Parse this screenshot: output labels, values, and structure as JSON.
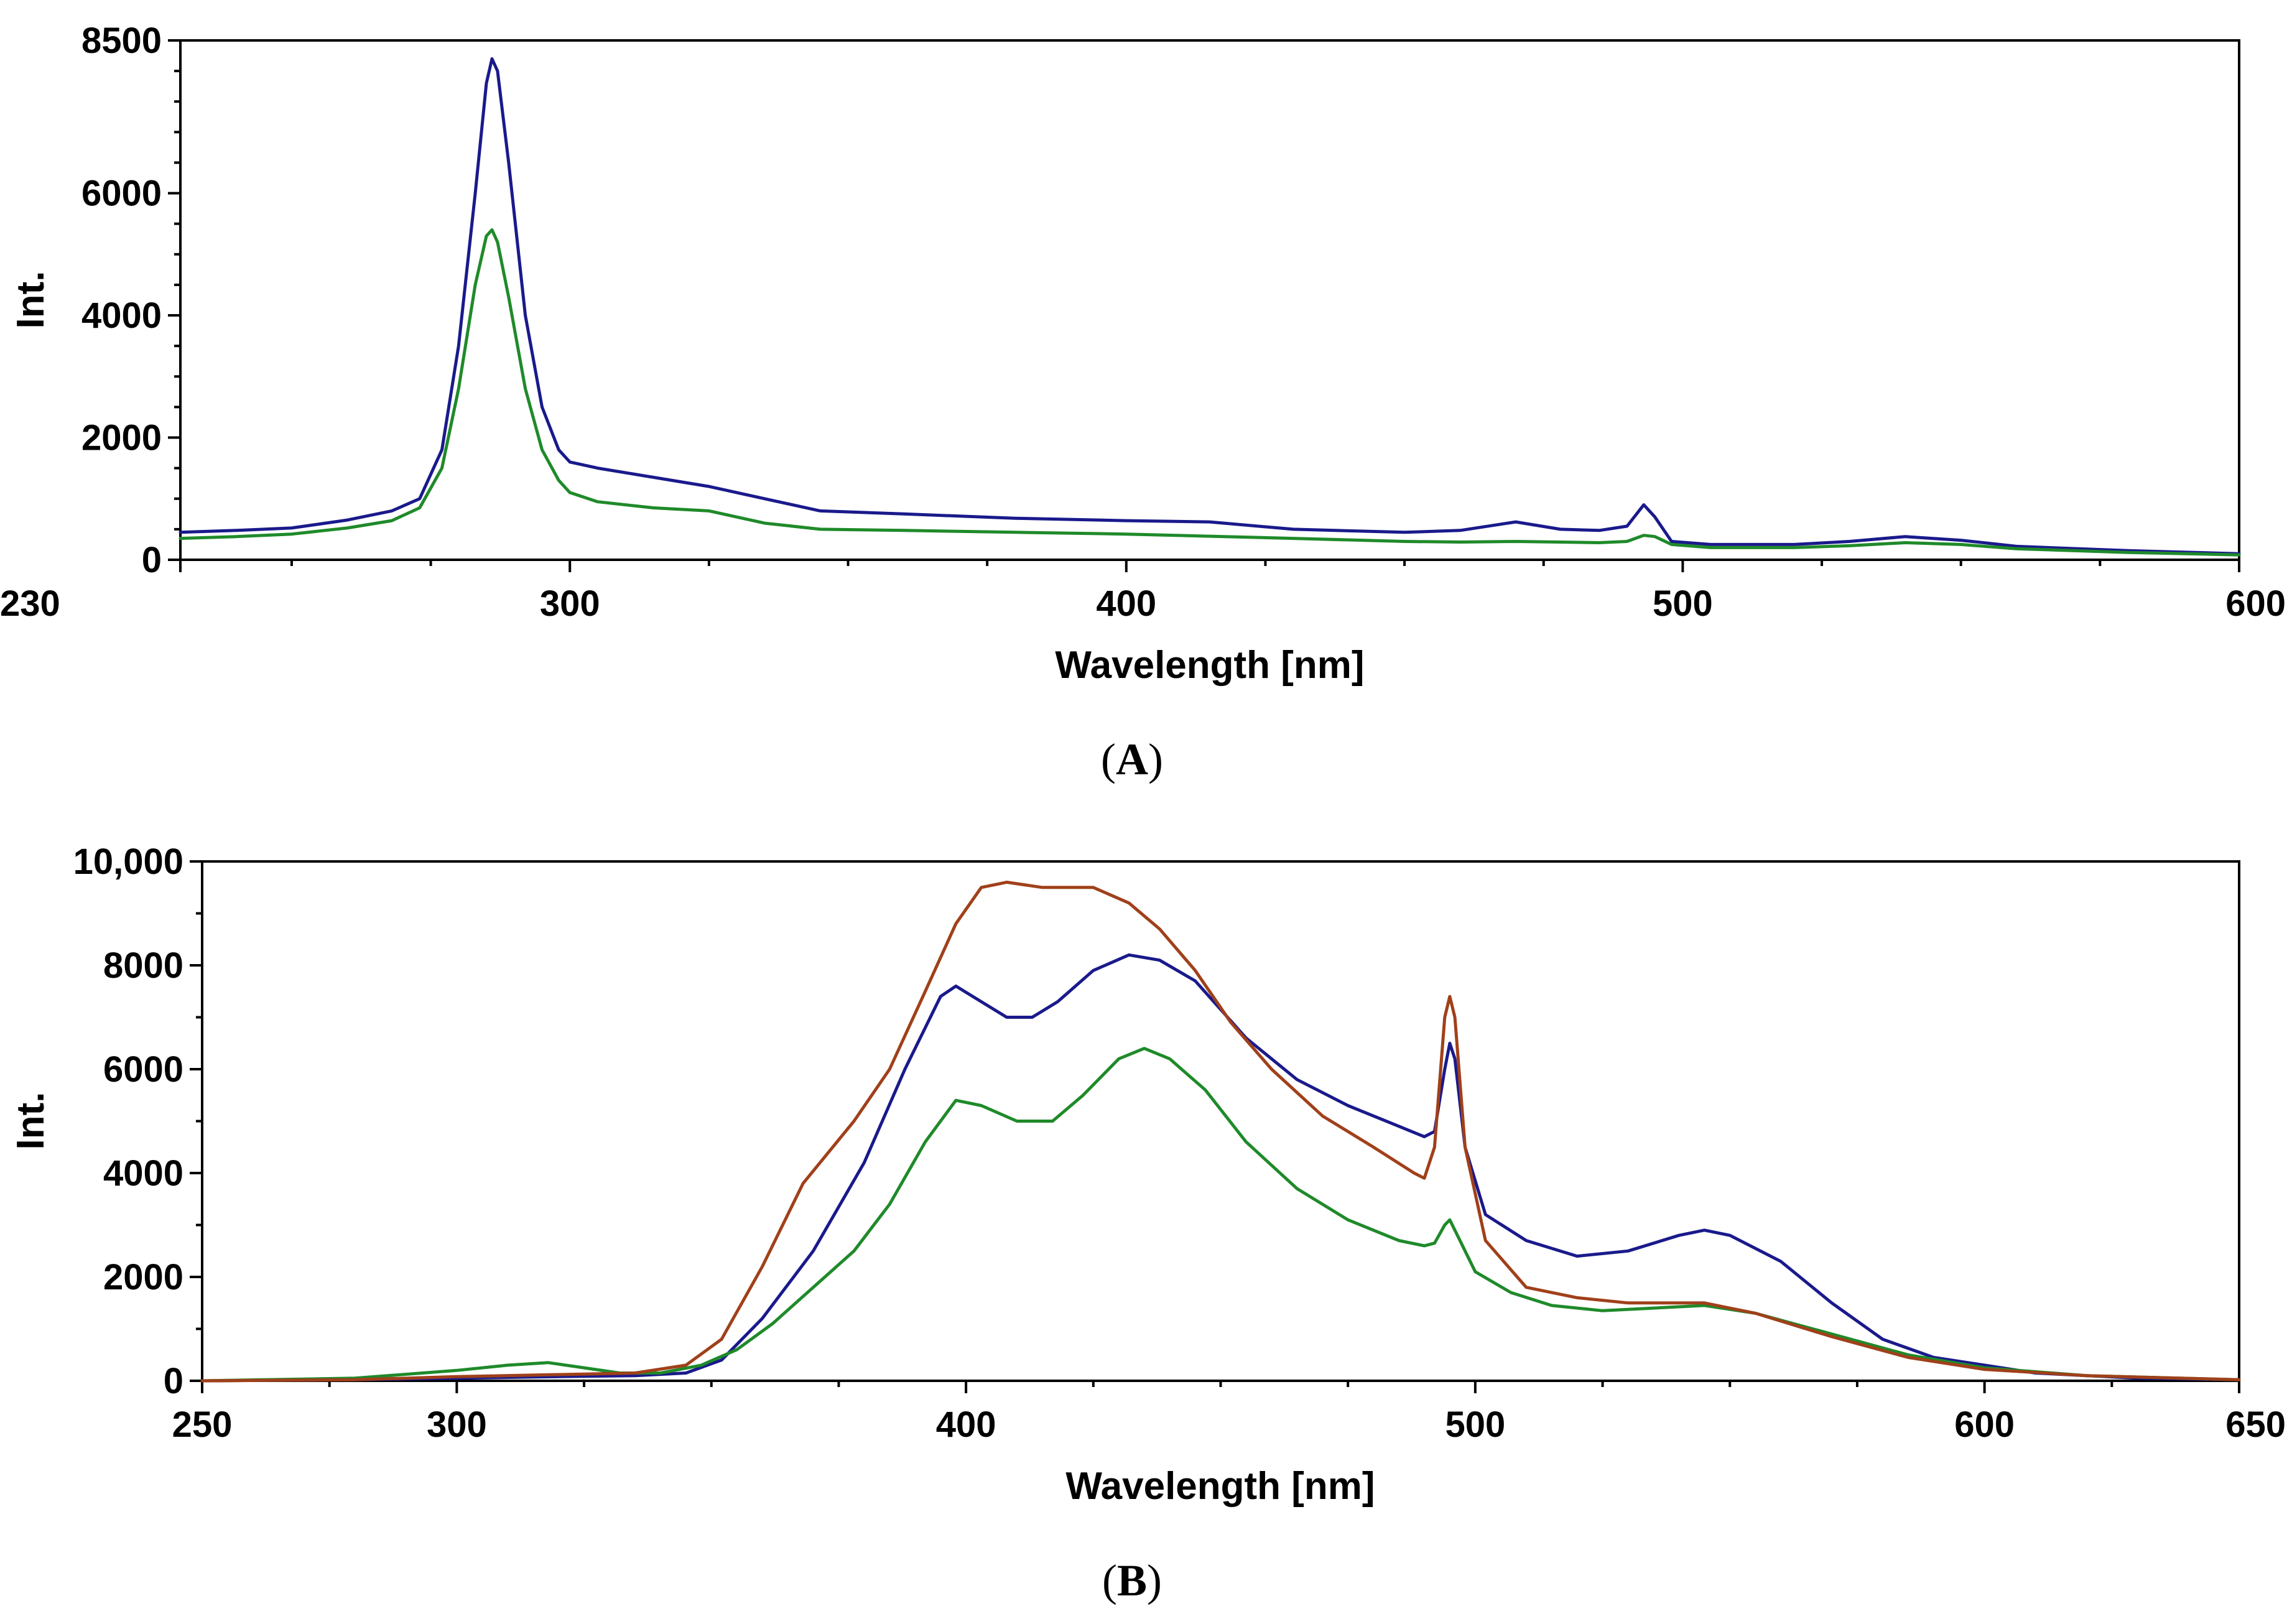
{
  "chart_data": [
    {
      "panel": "A",
      "type": "line",
      "title": "",
      "xlabel": "Wavelength [nm]",
      "ylabel": "Int.",
      "xlim": [
        230,
        600
      ],
      "ylim": [
        0,
        8500
      ],
      "xticks": [
        230,
        300,
        400,
        500,
        600
      ],
      "yticks": [
        0,
        2000,
        4000,
        6000,
        8500
      ],
      "ytick_labels": [
        "0",
        "2000",
        "4000",
        "6000",
        "8500"
      ],
      "xtick_labels": [
        "230",
        "300",
        "400",
        "500",
        "600"
      ],
      "grid": false,
      "series": [
        {
          "name": "blue",
          "color": "#1a1a8c",
          "points": [
            [
              230,
              450
            ],
            [
              240,
              480
            ],
            [
              250,
              520
            ],
            [
              260,
              650
            ],
            [
              268,
              800
            ],
            [
              273,
              1000
            ],
            [
              277,
              1800
            ],
            [
              280,
              3500
            ],
            [
              283,
              6000
            ],
            [
              285,
              7800
            ],
            [
              286,
              8200
            ],
            [
              287,
              8000
            ],
            [
              289,
              6500
            ],
            [
              292,
              4000
            ],
            [
              295,
              2500
            ],
            [
              298,
              1800
            ],
            [
              300,
              1600
            ],
            [
              305,
              1500
            ],
            [
              315,
              1350
            ],
            [
              325,
              1200
            ],
            [
              335,
              1000
            ],
            [
              345,
              800
            ],
            [
              360,
              750
            ],
            [
              380,
              680
            ],
            [
              400,
              640
            ],
            [
              415,
              620
            ],
            [
              430,
              500
            ],
            [
              450,
              450
            ],
            [
              460,
              480
            ],
            [
              470,
              620
            ],
            [
              478,
              500
            ],
            [
              485,
              480
            ],
            [
              490,
              550
            ],
            [
              493,
              900
            ],
            [
              495,
              700
            ],
            [
              498,
              300
            ],
            [
              505,
              250
            ],
            [
              520,
              250
            ],
            [
              530,
              300
            ],
            [
              540,
              380
            ],
            [
              550,
              320
            ],
            [
              560,
              220
            ],
            [
              580,
              150
            ],
            [
              600,
              100
            ]
          ]
        },
        {
          "name": "green",
          "color": "#1f8a2a",
          "points": [
            [
              230,
              350
            ],
            [
              240,
              380
            ],
            [
              250,
              420
            ],
            [
              260,
              520
            ],
            [
              268,
              640
            ],
            [
              273,
              850
            ],
            [
              277,
              1500
            ],
            [
              280,
              2800
            ],
            [
              283,
              4500
            ],
            [
              285,
              5300
            ],
            [
              286,
              5400
            ],
            [
              287,
              5200
            ],
            [
              289,
              4300
            ],
            [
              292,
              2800
            ],
            [
              295,
              1800
            ],
            [
              298,
              1300
            ],
            [
              300,
              1100
            ],
            [
              305,
              950
            ],
            [
              315,
              850
            ],
            [
              325,
              800
            ],
            [
              335,
              600
            ],
            [
              345,
              500
            ],
            [
              360,
              480
            ],
            [
              380,
              450
            ],
            [
              400,
              420
            ],
            [
              430,
              350
            ],
            [
              450,
              300
            ],
            [
              460,
              290
            ],
            [
              470,
              300
            ],
            [
              485,
              280
            ],
            [
              490,
              300
            ],
            [
              493,
              400
            ],
            [
              495,
              380
            ],
            [
              498,
              250
            ],
            [
              505,
              200
            ],
            [
              520,
              200
            ],
            [
              530,
              230
            ],
            [
              540,
              280
            ],
            [
              550,
              250
            ],
            [
              560,
              180
            ],
            [
              580,
              120
            ],
            [
              600,
              80
            ]
          ]
        }
      ]
    },
    {
      "panel": "B",
      "type": "line",
      "title": "",
      "xlabel": "Wavelength [nm]",
      "ylabel": "Int.",
      "xlim": [
        250,
        650
      ],
      "ylim": [
        0,
        10000
      ],
      "xticks": [
        250,
        300,
        400,
        500,
        600,
        650
      ],
      "yticks": [
        0,
        2000,
        4000,
        6000,
        8000,
        10000
      ],
      "ytick_labels": [
        "0",
        "2000",
        "4000",
        "6000",
        "8000",
        "10,000"
      ],
      "xtick_labels": [
        "250",
        "300",
        "400",
        "500",
        "600",
        "650"
      ],
      "grid": false,
      "series": [
        {
          "name": "blue",
          "color": "#1a1a8c",
          "points": [
            [
              250,
              0
            ],
            [
              280,
              20
            ],
            [
              300,
              50
            ],
            [
              320,
              80
            ],
            [
              335,
              100
            ],
            [
              345,
              150
            ],
            [
              352,
              400
            ],
            [
              360,
              1200
            ],
            [
              370,
              2500
            ],
            [
              380,
              4200
            ],
            [
              388,
              6000
            ],
            [
              395,
              7400
            ],
            [
              398,
              7600
            ],
            [
              403,
              7300
            ],
            [
              408,
              7000
            ],
            [
              413,
              7000
            ],
            [
              418,
              7300
            ],
            [
              425,
              7900
            ],
            [
              432,
              8200
            ],
            [
              438,
              8100
            ],
            [
              445,
              7700
            ],
            [
              455,
              6600
            ],
            [
              465,
              5800
            ],
            [
              475,
              5300
            ],
            [
              485,
              4900
            ],
            [
              490,
              4700
            ],
            [
              492,
              4800
            ],
            [
              494,
              6000
            ],
            [
              495,
              6500
            ],
            [
              496,
              6200
            ],
            [
              498,
              4500
            ],
            [
              502,
              3200
            ],
            [
              510,
              2700
            ],
            [
              520,
              2400
            ],
            [
              530,
              2500
            ],
            [
              540,
              2800
            ],
            [
              545,
              2900
            ],
            [
              550,
              2800
            ],
            [
              560,
              2300
            ],
            [
              570,
              1500
            ],
            [
              580,
              800
            ],
            [
              590,
              450
            ],
            [
              600,
              300
            ],
            [
              610,
              150
            ],
            [
              630,
              50
            ],
            [
              650,
              20
            ]
          ]
        },
        {
          "name": "green",
          "color": "#1f8a2a",
          "points": [
            [
              250,
              0
            ],
            [
              280,
              50
            ],
            [
              300,
              200
            ],
            [
              310,
              300
            ],
            [
              318,
              350
            ],
            [
              325,
              250
            ],
            [
              332,
              150
            ],
            [
              340,
              150
            ],
            [
              348,
              300
            ],
            [
              355,
              600
            ],
            [
              362,
              1100
            ],
            [
              370,
              1800
            ],
            [
              378,
              2500
            ],
            [
              385,
              3400
            ],
            [
              392,
              4600
            ],
            [
              398,
              5400
            ],
            [
              403,
              5300
            ],
            [
              410,
              5000
            ],
            [
              417,
              5000
            ],
            [
              423,
              5500
            ],
            [
              430,
              6200
            ],
            [
              435,
              6400
            ],
            [
              440,
              6200
            ],
            [
              447,
              5600
            ],
            [
              455,
              4600
            ],
            [
              465,
              3700
            ],
            [
              475,
              3100
            ],
            [
              485,
              2700
            ],
            [
              490,
              2600
            ],
            [
              492,
              2650
            ],
            [
              494,
              3000
            ],
            [
              495,
              3100
            ],
            [
              497,
              2700
            ],
            [
              500,
              2100
            ],
            [
              507,
              1700
            ],
            [
              515,
              1450
            ],
            [
              525,
              1350
            ],
            [
              535,
              1400
            ],
            [
              545,
              1450
            ],
            [
              555,
              1300
            ],
            [
              570,
              900
            ],
            [
              585,
              500
            ],
            [
              600,
              250
            ],
            [
              620,
              100
            ],
            [
              650,
              20
            ]
          ]
        },
        {
          "name": "brown",
          "color": "#a0401a",
          "points": [
            [
              250,
              0
            ],
            [
              280,
              20
            ],
            [
              300,
              80
            ],
            [
              320,
              120
            ],
            [
              335,
              150
            ],
            [
              345,
              300
            ],
            [
              352,
              800
            ],
            [
              360,
              2200
            ],
            [
              368,
              3800
            ],
            [
              378,
              5000
            ],
            [
              385,
              6000
            ],
            [
              392,
              7500
            ],
            [
              398,
              8800
            ],
            [
              403,
              9500
            ],
            [
              408,
              9600
            ],
            [
              415,
              9500
            ],
            [
              420,
              9500
            ],
            [
              425,
              9500
            ],
            [
              432,
              9200
            ],
            [
              438,
              8700
            ],
            [
              445,
              7900
            ],
            [
              452,
              6900
            ],
            [
              460,
              6000
            ],
            [
              470,
              5100
            ],
            [
              480,
              4500
            ],
            [
              488,
              4000
            ],
            [
              490,
              3900
            ],
            [
              492,
              4500
            ],
            [
              494,
              7000
            ],
            [
              495,
              7400
            ],
            [
              496,
              7000
            ],
            [
              498,
              4500
            ],
            [
              502,
              2700
            ],
            [
              510,
              1800
            ],
            [
              520,
              1600
            ],
            [
              530,
              1500
            ],
            [
              545,
              1500
            ],
            [
              555,
              1300
            ],
            [
              570,
              850
            ],
            [
              585,
              450
            ],
            [
              600,
              220
            ],
            [
              620,
              100
            ],
            [
              650,
              20
            ]
          ]
        }
      ]
    }
  ],
  "panels": {
    "A": {
      "label_open": "(",
      "label_letter": "A",
      "label_close": ")"
    },
    "B": {
      "label_open": "(",
      "label_letter": "B",
      "label_close": ")"
    }
  }
}
